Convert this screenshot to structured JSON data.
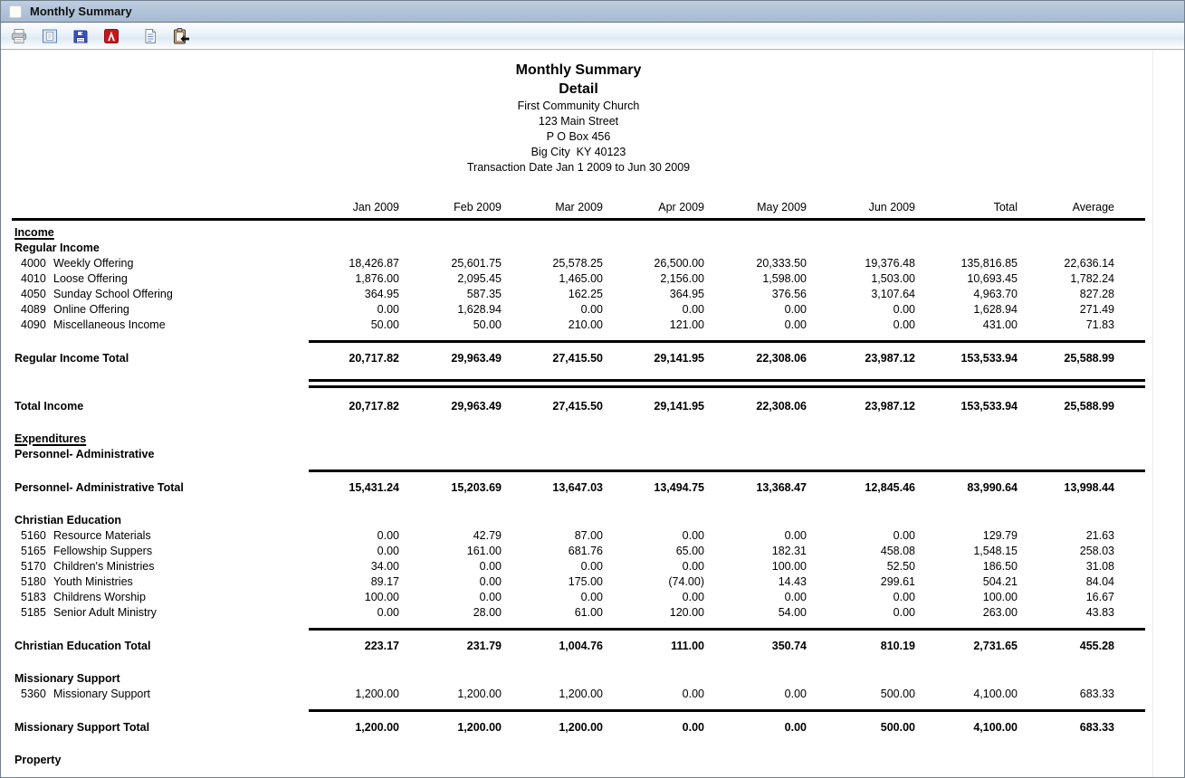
{
  "window": {
    "title": "Monthly Summary"
  },
  "toolbar": {
    "icons": [
      "print-icon",
      "print-preview-icon",
      "save-icon",
      "pdf-icon",
      "text-file-icon",
      "clipboard-icon"
    ]
  },
  "colors": {
    "titlebar_top": "#bfcde0",
    "titlebar_bottom": "#a5bad2",
    "toolbar_blue": "#dfeaf4",
    "pdf_red": "#c5161d",
    "save_blue": "#3a53c5",
    "clipboard_tan": "#c9a98c",
    "rule_black": "#000000"
  },
  "report": {
    "title_line1": "Monthly Summary",
    "title_line2": "Detail",
    "org_lines": {
      "name": "First Community Church",
      "street": "123 Main Street",
      "pobox": "P O Box 456",
      "city": "Big City  KY 40123",
      "range": "Transaction Date Jan 1 2009 to Jun 30 2009"
    },
    "columns": [
      "Jan 2009",
      "Feb 2009",
      "Mar 2009",
      "Apr 2009",
      "May 2009",
      "Jun 2009",
      "Total",
      "Average"
    ],
    "body": [
      {
        "kind": "heading_u",
        "label": "Income"
      },
      {
        "kind": "heading",
        "label": "Regular Income"
      },
      {
        "kind": "account",
        "code": "4000",
        "label": "Weekly Offering",
        "values": [
          "18,426.87",
          "25,601.75",
          "25,578.25",
          "26,500.00",
          "20,333.50",
          "19,376.48",
          "135,816.85",
          "22,636.14"
        ]
      },
      {
        "kind": "account",
        "code": "4010",
        "label": "Loose Offering",
        "values": [
          "1,876.00",
          "2,095.45",
          "1,465.00",
          "2,156.00",
          "1,598.00",
          "1,503.00",
          "10,693.45",
          "1,782.24"
        ]
      },
      {
        "kind": "account",
        "code": "4050",
        "label": "Sunday School Offering",
        "values": [
          "364.95",
          "587.35",
          "162.25",
          "364.95",
          "376.56",
          "3,107.64",
          "4,963.70",
          "827.28"
        ]
      },
      {
        "kind": "account",
        "code": "4089",
        "label": "Online Offering",
        "values": [
          "0.00",
          "1,628.94",
          "0.00",
          "0.00",
          "0.00",
          "0.00",
          "1,628.94",
          "271.49"
        ]
      },
      {
        "kind": "account",
        "code": "4090",
        "label": "Miscellaneous Income",
        "values": [
          "50.00",
          "50.00",
          "210.00",
          "121.00",
          "0.00",
          "0.00",
          "431.00",
          "71.83"
        ]
      },
      {
        "kind": "rule"
      },
      {
        "kind": "total",
        "label": "Regular Income Total",
        "values": [
          "20,717.82",
          "29,963.49",
          "27,415.50",
          "29,141.95",
          "22,308.06",
          "23,987.12",
          "153,533.94",
          "25,588.99"
        ]
      },
      {
        "kind": "double_rule"
      },
      {
        "kind": "total",
        "label": "Total Income",
        "values": [
          "20,717.82",
          "29,963.49",
          "27,415.50",
          "29,141.95",
          "22,308.06",
          "23,987.12",
          "153,533.94",
          "25,588.99"
        ]
      },
      {
        "kind": "heading_u",
        "label": "Expenditures"
      },
      {
        "kind": "heading",
        "label": "Personnel- Administrative"
      },
      {
        "kind": "rule"
      },
      {
        "kind": "total",
        "label": "Personnel- Administrative Total",
        "values": [
          "15,431.24",
          "15,203.69",
          "13,647.03",
          "13,494.75",
          "13,368.47",
          "12,845.46",
          "83,990.64",
          "13,998.44"
        ]
      },
      {
        "kind": "heading",
        "label": "Christian Education"
      },
      {
        "kind": "account",
        "code": "5160",
        "label": "Resource Materials",
        "values": [
          "0.00",
          "42.79",
          "87.00",
          "0.00",
          "0.00",
          "0.00",
          "129.79",
          "21.63"
        ]
      },
      {
        "kind": "account",
        "code": "5165",
        "label": "Fellowship Suppers",
        "values": [
          "0.00",
          "161.00",
          "681.76",
          "65.00",
          "182.31",
          "458.08",
          "1,548.15",
          "258.03"
        ]
      },
      {
        "kind": "account",
        "code": "5170",
        "label": "Children's Ministries",
        "values": [
          "34.00",
          "0.00",
          "0.00",
          "0.00",
          "100.00",
          "52.50",
          "186.50",
          "31.08"
        ]
      },
      {
        "kind": "account",
        "code": "5180",
        "label": "Youth Ministries",
        "values": [
          "89.17",
          "0.00",
          "175.00",
          "(74.00)",
          "14.43",
          "299.61",
          "504.21",
          "84.04"
        ]
      },
      {
        "kind": "account",
        "code": "5183",
        "label": "Childrens Worship",
        "values": [
          "100.00",
          "0.00",
          "0.00",
          "0.00",
          "0.00",
          "0.00",
          "100.00",
          "16.67"
        ]
      },
      {
        "kind": "account",
        "code": "5185",
        "label": "Senior Adult Ministry",
        "values": [
          "0.00",
          "28.00",
          "61.00",
          "120.00",
          "54.00",
          "0.00",
          "263.00",
          "43.83"
        ]
      },
      {
        "kind": "rule"
      },
      {
        "kind": "total",
        "label": "Christian Education Total",
        "values": [
          "223.17",
          "231.79",
          "1,004.76",
          "111.00",
          "350.74",
          "810.19",
          "2,731.65",
          "455.28"
        ]
      },
      {
        "kind": "heading",
        "label": "Missionary Support"
      },
      {
        "kind": "account",
        "code": "5360",
        "label": "Missionary Support",
        "values": [
          "1,200.00",
          "1,200.00",
          "1,200.00",
          "0.00",
          "0.00",
          "500.00",
          "4,100.00",
          "683.33"
        ]
      },
      {
        "kind": "rule"
      },
      {
        "kind": "total",
        "label": "Missionary Support Total",
        "values": [
          "1,200.00",
          "1,200.00",
          "1,200.00",
          "0.00",
          "0.00",
          "500.00",
          "4,100.00",
          "683.33"
        ]
      },
      {
        "kind": "heading",
        "label": "Property"
      }
    ]
  }
}
